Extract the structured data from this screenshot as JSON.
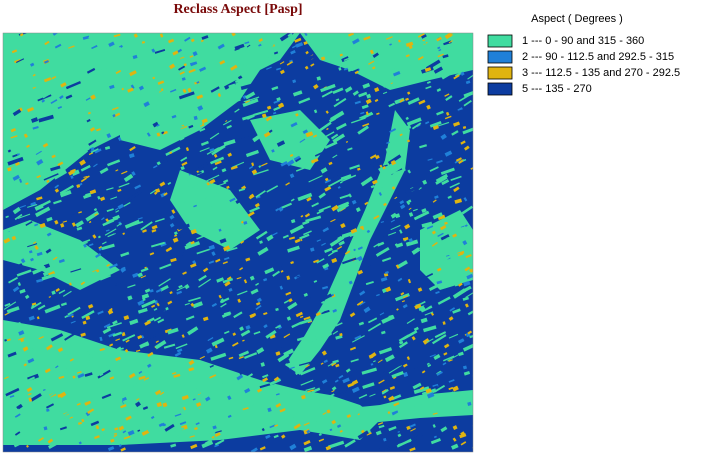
{
  "map": {
    "title": "Reclass Aspect [Pasp]",
    "legend": {
      "title": "Aspect ( Degrees )",
      "items": [
        {
          "label": "1 --- 0 - 90 and 315 - 360",
          "color": "#40dca0"
        },
        {
          "label": "2 --- 90 - 112.5 and 292.5 - 315",
          "color": "#2080d8"
        },
        {
          "label": "3 --- 112.5 - 135 and 270 - 292.5",
          "color": "#e0b410"
        },
        {
          "label": "5 --- 135 - 270",
          "color": "#0c3ca0"
        }
      ]
    }
  }
}
